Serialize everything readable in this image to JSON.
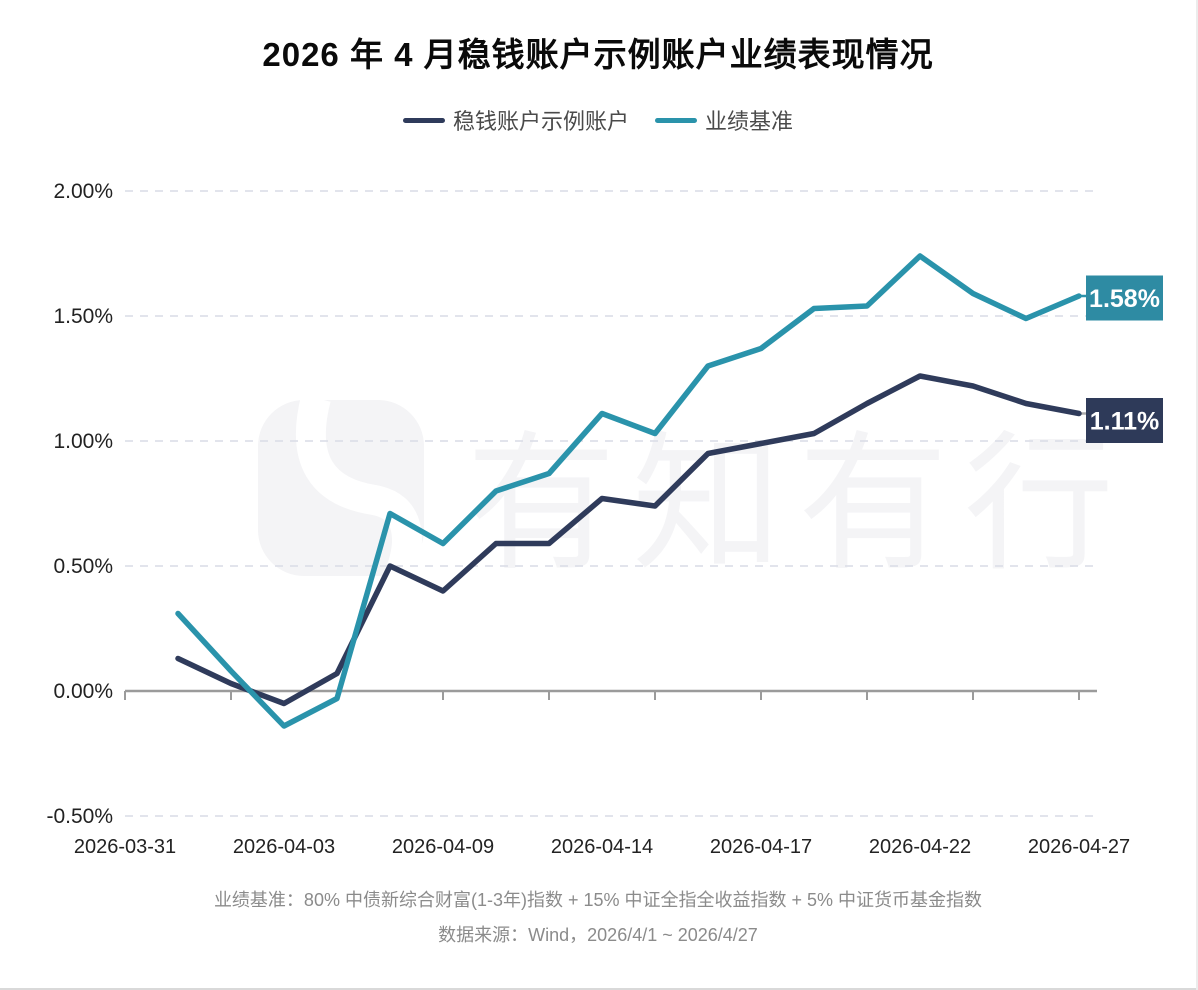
{
  "title": "2026 年 4 月稳钱账户示例账户业绩表现情况",
  "legend": {
    "items": [
      {
        "label": "稳钱账户示例账户",
        "color": "#2f3b5b"
      },
      {
        "label": "业绩基准",
        "color": "#2a93ab"
      }
    ]
  },
  "watermark": {
    "logo": "youzhiyouxing-logo",
    "text": "有知有行",
    "color": "#f4f4f6"
  },
  "footnotes": {
    "benchmark_definition": "业绩基准：80% 中债新综合财富(1-3年)指数 + 15% 中证全指全收益指数 + 5% 中证货币基金指数",
    "data_source": "数据来源：Wind，2026/4/1 ~ 2026/4/27"
  },
  "chart_data": {
    "type": "line",
    "title": "2026 年 4 月稳钱账户示例账户业绩表现情况",
    "x": [
      "2026-04-01",
      "2026-04-02",
      "2026-04-03",
      "2026-04-07",
      "2026-04-08",
      "2026-04-09",
      "2026-04-10",
      "2026-04-13",
      "2026-04-14",
      "2026-04-15",
      "2026-04-16",
      "2026-04-17",
      "2026-04-20",
      "2026-04-21",
      "2026-04-22",
      "2026-04-23",
      "2026-04-24",
      "2026-04-27"
    ],
    "series": [
      {
        "name": "稳钱账户示例账户",
        "color": "#2f3b5b",
        "badge_color": "#2e3a59",
        "end_label": "1.11%",
        "values": [
          0.13,
          0.03,
          -0.05,
          0.07,
          0.5,
          0.4,
          0.59,
          0.59,
          0.77,
          0.74,
          0.95,
          0.99,
          1.03,
          1.15,
          1.26,
          1.22,
          1.15,
          1.11
        ]
      },
      {
        "name": "业绩基准",
        "color": "#2a93ab",
        "badge_color": "#2e8ba3",
        "end_label": "1.58%",
        "values": [
          0.31,
          0.08,
          -0.14,
          -0.03,
          0.71,
          0.59,
          0.8,
          0.87,
          1.11,
          1.03,
          1.3,
          1.37,
          1.53,
          1.54,
          1.74,
          1.59,
          1.49,
          1.58
        ]
      }
    ],
    "unit": "%",
    "ylim": [
      -0.5,
      2.0
    ],
    "grid": true,
    "legend_position": "top",
    "yticks": [
      {
        "value": 2.0,
        "label": "2.00%"
      },
      {
        "value": 1.5,
        "label": "1.50%"
      },
      {
        "value": 1.0,
        "label": "1.00%"
      },
      {
        "value": 0.5,
        "label": "0.50%"
      },
      {
        "value": 0.0,
        "label": "0.00%"
      },
      {
        "value": -0.5,
        "label": "-0.50%"
      }
    ],
    "xticks": [
      {
        "index": -1,
        "label": "2026-03-31"
      },
      {
        "index": 2,
        "label": "2026-04-03"
      },
      {
        "index": 5,
        "label": "2026-04-09"
      },
      {
        "index": 8,
        "label": "2026-04-14"
      },
      {
        "index": 11,
        "label": "2026-04-17"
      },
      {
        "index": 14,
        "label": "2026-04-22"
      },
      {
        "index": 17,
        "label": "2026-04-27"
      }
    ],
    "axis_tick_indices": [
      -1,
      1,
      3,
      5,
      7,
      9,
      11,
      13,
      15,
      17
    ]
  }
}
